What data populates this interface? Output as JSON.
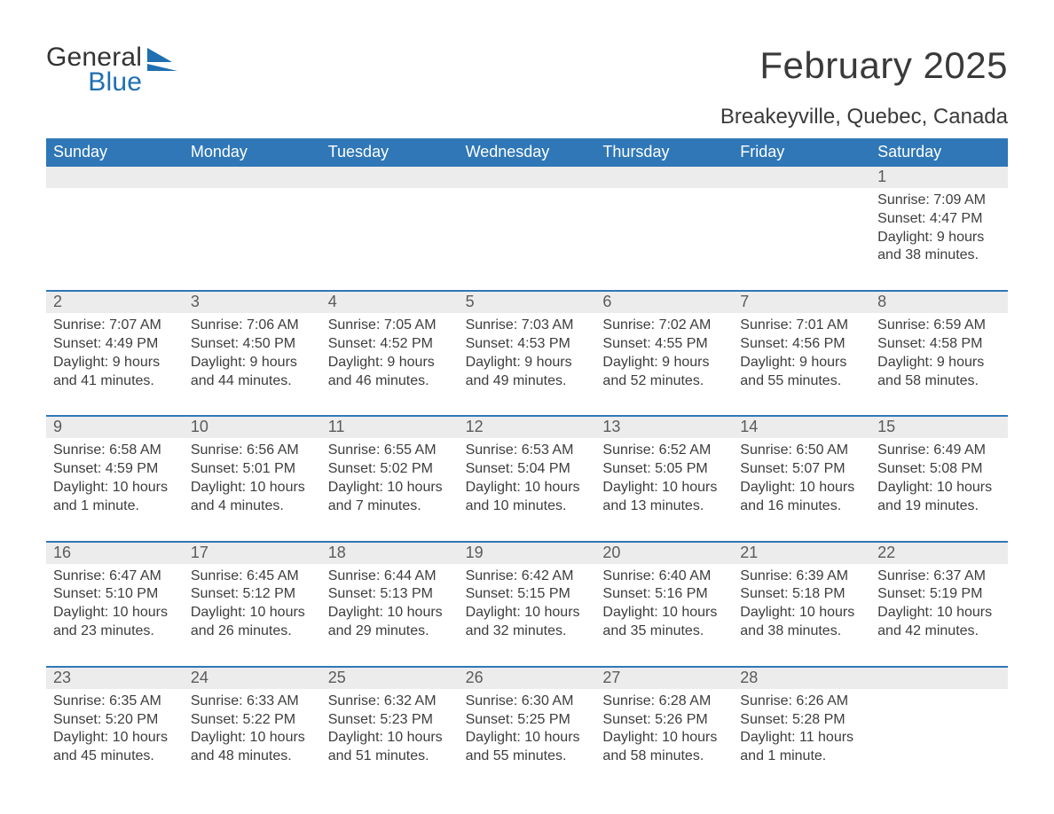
{
  "brand": {
    "word1": "General",
    "word2": "Blue",
    "word1_color": "#333333",
    "word2_color": "#1f6fb2",
    "shape_color": "#1f6fb2"
  },
  "title": "February 2025",
  "location": "Breakeyville, Quebec, Canada",
  "colors": {
    "header_bg": "#2f77b6",
    "header_text": "#ffffff",
    "divider": "#2f77b6",
    "daynum_bg": "#ececec",
    "text": "#3a3a3a",
    "background": "#ffffff"
  },
  "day_labels": [
    "Sunday",
    "Monday",
    "Tuesday",
    "Wednesday",
    "Thursday",
    "Friday",
    "Saturday"
  ],
  "weeks": [
    [
      {
        "n": "",
        "lines": []
      },
      {
        "n": "",
        "lines": []
      },
      {
        "n": "",
        "lines": []
      },
      {
        "n": "",
        "lines": []
      },
      {
        "n": "",
        "lines": []
      },
      {
        "n": "",
        "lines": []
      },
      {
        "n": "1",
        "lines": [
          "Sunrise: 7:09 AM",
          "Sunset: 4:47 PM",
          "Daylight: 9 hours",
          "and 38 minutes."
        ]
      }
    ],
    [
      {
        "n": "2",
        "lines": [
          "Sunrise: 7:07 AM",
          "Sunset: 4:49 PM",
          "Daylight: 9 hours",
          "and 41 minutes."
        ]
      },
      {
        "n": "3",
        "lines": [
          "Sunrise: 7:06 AM",
          "Sunset: 4:50 PM",
          "Daylight: 9 hours",
          "and 44 minutes."
        ]
      },
      {
        "n": "4",
        "lines": [
          "Sunrise: 7:05 AM",
          "Sunset: 4:52 PM",
          "Daylight: 9 hours",
          "and 46 minutes."
        ]
      },
      {
        "n": "5",
        "lines": [
          "Sunrise: 7:03 AM",
          "Sunset: 4:53 PM",
          "Daylight: 9 hours",
          "and 49 minutes."
        ]
      },
      {
        "n": "6",
        "lines": [
          "Sunrise: 7:02 AM",
          "Sunset: 4:55 PM",
          "Daylight: 9 hours",
          "and 52 minutes."
        ]
      },
      {
        "n": "7",
        "lines": [
          "Sunrise: 7:01 AM",
          "Sunset: 4:56 PM",
          "Daylight: 9 hours",
          "and 55 minutes."
        ]
      },
      {
        "n": "8",
        "lines": [
          "Sunrise: 6:59 AM",
          "Sunset: 4:58 PM",
          "Daylight: 9 hours",
          "and 58 minutes."
        ]
      }
    ],
    [
      {
        "n": "9",
        "lines": [
          "Sunrise: 6:58 AM",
          "Sunset: 4:59 PM",
          "Daylight: 10 hours",
          "and 1 minute."
        ]
      },
      {
        "n": "10",
        "lines": [
          "Sunrise: 6:56 AM",
          "Sunset: 5:01 PM",
          "Daylight: 10 hours",
          "and 4 minutes."
        ]
      },
      {
        "n": "11",
        "lines": [
          "Sunrise: 6:55 AM",
          "Sunset: 5:02 PM",
          "Daylight: 10 hours",
          "and 7 minutes."
        ]
      },
      {
        "n": "12",
        "lines": [
          "Sunrise: 6:53 AM",
          "Sunset: 5:04 PM",
          "Daylight: 10 hours",
          "and 10 minutes."
        ]
      },
      {
        "n": "13",
        "lines": [
          "Sunrise: 6:52 AM",
          "Sunset: 5:05 PM",
          "Daylight: 10 hours",
          "and 13 minutes."
        ]
      },
      {
        "n": "14",
        "lines": [
          "Sunrise: 6:50 AM",
          "Sunset: 5:07 PM",
          "Daylight: 10 hours",
          "and 16 minutes."
        ]
      },
      {
        "n": "15",
        "lines": [
          "Sunrise: 6:49 AM",
          "Sunset: 5:08 PM",
          "Daylight: 10 hours",
          "and 19 minutes."
        ]
      }
    ],
    [
      {
        "n": "16",
        "lines": [
          "Sunrise: 6:47 AM",
          "Sunset: 5:10 PM",
          "Daylight: 10 hours",
          "and 23 minutes."
        ]
      },
      {
        "n": "17",
        "lines": [
          "Sunrise: 6:45 AM",
          "Sunset: 5:12 PM",
          "Daylight: 10 hours",
          "and 26 minutes."
        ]
      },
      {
        "n": "18",
        "lines": [
          "Sunrise: 6:44 AM",
          "Sunset: 5:13 PM",
          "Daylight: 10 hours",
          "and 29 minutes."
        ]
      },
      {
        "n": "19",
        "lines": [
          "Sunrise: 6:42 AM",
          "Sunset: 5:15 PM",
          "Daylight: 10 hours",
          "and 32 minutes."
        ]
      },
      {
        "n": "20",
        "lines": [
          "Sunrise: 6:40 AM",
          "Sunset: 5:16 PM",
          "Daylight: 10 hours",
          "and 35 minutes."
        ]
      },
      {
        "n": "21",
        "lines": [
          "Sunrise: 6:39 AM",
          "Sunset: 5:18 PM",
          "Daylight: 10 hours",
          "and 38 minutes."
        ]
      },
      {
        "n": "22",
        "lines": [
          "Sunrise: 6:37 AM",
          "Sunset: 5:19 PM",
          "Daylight: 10 hours",
          "and 42 minutes."
        ]
      }
    ],
    [
      {
        "n": "23",
        "lines": [
          "Sunrise: 6:35 AM",
          "Sunset: 5:20 PM",
          "Daylight: 10 hours",
          "and 45 minutes."
        ]
      },
      {
        "n": "24",
        "lines": [
          "Sunrise: 6:33 AM",
          "Sunset: 5:22 PM",
          "Daylight: 10 hours",
          "and 48 minutes."
        ]
      },
      {
        "n": "25",
        "lines": [
          "Sunrise: 6:32 AM",
          "Sunset: 5:23 PM",
          "Daylight: 10 hours",
          "and 51 minutes."
        ]
      },
      {
        "n": "26",
        "lines": [
          "Sunrise: 6:30 AM",
          "Sunset: 5:25 PM",
          "Daylight: 10 hours",
          "and 55 minutes."
        ]
      },
      {
        "n": "27",
        "lines": [
          "Sunrise: 6:28 AM",
          "Sunset: 5:26 PM",
          "Daylight: 10 hours",
          "and 58 minutes."
        ]
      },
      {
        "n": "28",
        "lines": [
          "Sunrise: 6:26 AM",
          "Sunset: 5:28 PM",
          "Daylight: 11 hours",
          "and 1 minute."
        ]
      },
      {
        "n": "",
        "lines": []
      }
    ]
  ]
}
